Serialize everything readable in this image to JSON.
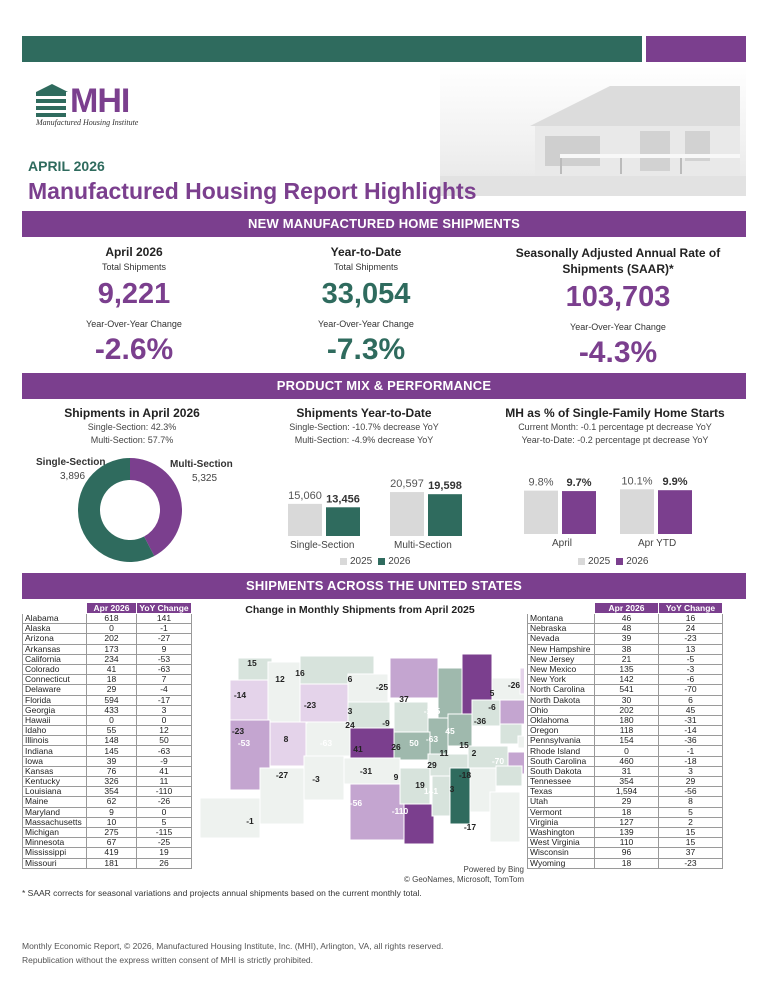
{
  "header": {
    "logo_text": "MHI",
    "logo_subtitle": "Manufactured Housing Institute",
    "month": "APRIL 2026",
    "title": "Manufactured Housing Report Highlights"
  },
  "colors": {
    "green": "#2f6b5e",
    "purple": "#7b3f8e",
    "light_gray": "#d9d9d9"
  },
  "section_shipments": {
    "band": "NEW MANUFACTURED HOME SHIPMENTS",
    "metrics": [
      {
        "heading": "April 2026",
        "sublabel": "Total Shipments",
        "value": "9,221",
        "yoy_label": "Year-Over-Year Change",
        "yoy_value": "-2.6%"
      },
      {
        "heading": "Year-to-Date",
        "sublabel": "Total Shipments",
        "value": "33,054",
        "yoy_label": "Year-Over-Year Change",
        "yoy_value": "-7.3%"
      },
      {
        "heading": "Seasonally Adjusted Annual Rate of Shipments (SAAR)*",
        "sublabel": "",
        "value": "103,703",
        "yoy_label": "Year-Over-Year Change",
        "yoy_value": "-4.3%"
      }
    ]
  },
  "section_mix": {
    "band": "PRODUCT MIX & PERFORMANCE",
    "panel1": {
      "heading": "Shipments in April 2026",
      "line1": "Single-Section: 42.3%",
      "line2": "Multi-Section: 57.7%",
      "single_label": "Single-Section",
      "single_value": "3,896",
      "multi_label": "Multi-Section",
      "multi_value": "5,325"
    },
    "panel2": {
      "heading": "Shipments Year-to-Date",
      "line1": "Single-Section: -10.7% decrease YoY",
      "line2": "Multi-Section: -4.9% decrease YoY"
    },
    "panel3": {
      "heading": "MH as % of Single-Family Home Starts",
      "line1": "Current Month: -0.1 percentage pt decrease YoY",
      "line2": "Year-to-Date: -0.2 percentage pt decrease YoY"
    },
    "legend_2025": "2025",
    "legend_2026": "2026"
  },
  "chart_data": [
    {
      "type": "pie",
      "categories": [
        "Single-Section",
        "Multi-Section"
      ],
      "values": [
        3896,
        5325
      ],
      "colors": [
        "#2f6b5e",
        "#7b3f8e"
      ]
    },
    {
      "type": "bar",
      "categories": [
        "Single-Section",
        "Multi-Section"
      ],
      "series": [
        {
          "name": "2025",
          "values": [
            15060,
            20597
          ],
          "labels": [
            "15,060",
            "20,597"
          ],
          "color": "#d9d9d9"
        },
        {
          "name": "2026",
          "values": [
            13456,
            19598
          ],
          "labels": [
            "13,456",
            "19,598"
          ],
          "color": "#2f6b5e"
        }
      ]
    },
    {
      "type": "bar",
      "categories": [
        "April",
        "Apr YTD"
      ],
      "series": [
        {
          "name": "2025",
          "values": [
            9.8,
            10.1
          ],
          "labels": [
            "9.8%",
            "10.1%"
          ],
          "color": "#d9d9d9"
        },
        {
          "name": "2026",
          "values": [
            9.7,
            9.9
          ],
          "labels": [
            "9.7%",
            "9.9%"
          ],
          "color": "#7b3f8e"
        }
      ]
    }
  ],
  "section_states": {
    "band": "SHIPMENTS ACROSS THE UNITED STATES",
    "col_apr": "Apr 2026",
    "col_yoy": "YoY Change",
    "map_title": "Change in Monthly Shipments from April 2025",
    "map_credit1": "Powered by Bing",
    "map_credit2": "© GeoNames, Microsoft, TomTom",
    "left_rows": [
      [
        "Alabama",
        "618",
        "141"
      ],
      [
        "Alaska",
        "0",
        "-1"
      ],
      [
        "Arizona",
        "202",
        "-27"
      ],
      [
        "Arkansas",
        "173",
        "9"
      ],
      [
        "California",
        "234",
        "-53"
      ],
      [
        "Colorado",
        "41",
        "-63"
      ],
      [
        "Connecticut",
        "18",
        "7"
      ],
      [
        "Delaware",
        "29",
        "-4"
      ],
      [
        "Florida",
        "594",
        "-17"
      ],
      [
        "Georgia",
        "433",
        "3"
      ],
      [
        "Hawaii",
        "0",
        "0"
      ],
      [
        "Idaho",
        "55",
        "12"
      ],
      [
        "Illinois",
        "148",
        "50"
      ],
      [
        "Indiana",
        "145",
        "-63"
      ],
      [
        "Iowa",
        "39",
        "-9"
      ],
      [
        "Kansas",
        "76",
        "41"
      ],
      [
        "Kentucky",
        "326",
        "11"
      ],
      [
        "Louisiana",
        "354",
        "-110"
      ],
      [
        "Maine",
        "62",
        "-26"
      ],
      [
        "Maryland",
        "9",
        "0"
      ],
      [
        "Massachusetts",
        "10",
        "5"
      ],
      [
        "Michigan",
        "275",
        "-115"
      ],
      [
        "Minnesota",
        "67",
        "-25"
      ],
      [
        "Mississippi",
        "419",
        "19"
      ],
      [
        "Missouri",
        "181",
        "26"
      ]
    ],
    "right_rows": [
      [
        "Montana",
        "46",
        "16"
      ],
      [
        "Nebraska",
        "48",
        "24"
      ],
      [
        "Nevada",
        "39",
        "-23"
      ],
      [
        "New Hampshire",
        "38",
        "13"
      ],
      [
        "New Jersey",
        "21",
        "-5"
      ],
      [
        "New Mexico",
        "135",
        "-3"
      ],
      [
        "New York",
        "142",
        "-6"
      ],
      [
        "North Carolina",
        "541",
        "-70"
      ],
      [
        "North Dakota",
        "30",
        "6"
      ],
      [
        "Ohio",
        "202",
        "45"
      ],
      [
        "Oklahoma",
        "180",
        "-31"
      ],
      [
        "Oregon",
        "118",
        "-14"
      ],
      [
        "Pennsylvania",
        "154",
        "-36"
      ],
      [
        "Rhode Island",
        "0",
        "-1"
      ],
      [
        "South Carolina",
        "460",
        "-18"
      ],
      [
        "South Dakota",
        "31",
        "3"
      ],
      [
        "Tennessee",
        "354",
        "29"
      ],
      [
        "Texas",
        "1,594",
        "-56"
      ],
      [
        "Utah",
        "29",
        "8"
      ],
      [
        "Vermont",
        "18",
        "5"
      ],
      [
        "Virginia",
        "127",
        "2"
      ],
      [
        "Washington",
        "139",
        "15"
      ],
      [
        "West Virginia",
        "110",
        "15"
      ],
      [
        "Wisconsin",
        "96",
        "37"
      ],
      [
        "Wyoming",
        "18",
        "-23"
      ]
    ],
    "map_labels": [
      "15",
      "-14",
      "12",
      "16",
      "6",
      "-25",
      "37",
      "5",
      "-26",
      "-23",
      "-23",
      "3",
      "-9",
      "-115",
      "-6",
      "-53",
      "8",
      "-63",
      "24",
      "50",
      "-63",
      "45",
      "-36",
      "41",
      "26",
      "15",
      "11",
      "2",
      "-27",
      "-3",
      "-31",
      "9",
      "29",
      "-70",
      "-56",
      "19",
      "141",
      "3",
      "-18",
      "-110",
      "-1",
      "-17"
    ]
  },
  "footnote": "* SAAR corrects for seasonal variations and projects annual shipments based on the current monthly total.",
  "footer": {
    "line1": "Monthly Economic Report, © 2026, Manufactured Housing Institute, Inc. (MHI), Arlington, VA, all rights reserved.",
    "line2": "Republication without the express written consent of MHI is strictly prohibited."
  }
}
